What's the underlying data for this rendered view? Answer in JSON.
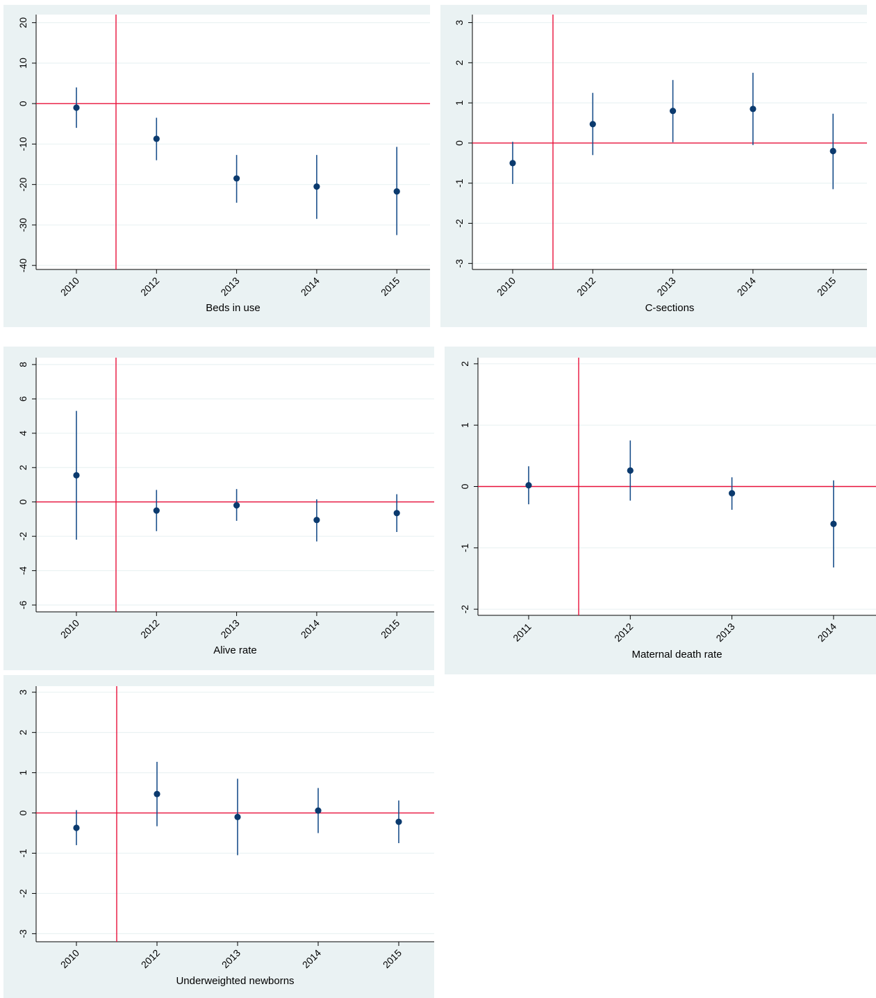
{
  "colors": {
    "background": "#eaf2f3",
    "reference_line": "#e8103a",
    "estimate": "#0b3a6e",
    "interval": "#1a4f8b"
  },
  "chart_data": [
    {
      "type": "scatter",
      "subtype": "point-estimate-with-confidence-interval",
      "xlabel": "Beds in use",
      "categories": [
        "2010",
        "2012",
        "2013",
        "2014",
        "2015"
      ],
      "estimates": [
        -1,
        -8.7,
        -18.5,
        -20.5,
        -21.7
      ],
      "ci_low": [
        -6,
        -14,
        -24.5,
        -28.5,
        -32.5
      ],
      "ci_high": [
        4,
        -3.5,
        -12.7,
        -12.7,
        -10.7
      ],
      "ylim": [
        -41,
        22
      ],
      "yticks": [
        "20",
        "10",
        "0",
        "-10",
        "-20",
        "-30",
        "-40"
      ],
      "ytick_values": [
        20,
        10,
        0,
        -10,
        -20,
        -30,
        -40
      ],
      "reference_y": 0,
      "reference_x_between": [
        "2010",
        "2012"
      ],
      "grid": true
    },
    {
      "type": "scatter",
      "subtype": "point-estimate-with-confidence-interval",
      "xlabel": "C-sections",
      "categories": [
        "2010",
        "2012",
        "2013",
        "2014",
        "2015"
      ],
      "estimates": [
        -0.5,
        0.47,
        0.8,
        0.85,
        -0.2
      ],
      "ci_low": [
        -1.02,
        -0.3,
        0.02,
        -0.05,
        -1.15
      ],
      "ci_high": [
        0.03,
        1.25,
        1.57,
        1.75,
        0.73
      ],
      "ylim": [
        -3.15,
        3.2
      ],
      "yticks": [
        "3",
        "2",
        "1",
        "0",
        "-1",
        "-2",
        "-3"
      ],
      "ytick_values": [
        3,
        2,
        1,
        0,
        -1,
        -2,
        -3
      ],
      "reference_y": 0,
      "reference_x_between": [
        "2010",
        "2012"
      ],
      "grid": true
    },
    {
      "type": "scatter",
      "subtype": "point-estimate-with-confidence-interval",
      "xlabel": "Alive rate",
      "categories": [
        "2010",
        "2012",
        "2013",
        "2014",
        "2015"
      ],
      "estimates": [
        1.55,
        -0.5,
        -0.2,
        -1.05,
        -0.65
      ],
      "ci_low": [
        -2.2,
        -1.7,
        -1.1,
        -2.3,
        -1.75
      ],
      "ci_high": [
        5.3,
        0.7,
        0.75,
        0.15,
        0.45
      ],
      "ylim": [
        -6.4,
        8.4
      ],
      "yticks": [
        "8",
        "6",
        "4",
        "2",
        "0",
        "-2",
        "-4",
        "-6"
      ],
      "ytick_values": [
        8,
        6,
        4,
        2,
        0,
        -2,
        -4,
        -6
      ],
      "reference_y": 0,
      "reference_x_between": [
        "2010",
        "2012"
      ],
      "grid": true
    },
    {
      "type": "scatter",
      "subtype": "point-estimate-with-confidence-interval",
      "xlabel": "Maternal death rate",
      "categories": [
        "2011",
        "2012",
        "2013",
        "2014"
      ],
      "estimates": [
        0.02,
        0.26,
        -0.11,
        -0.61
      ],
      "ci_low": [
        -0.29,
        -0.23,
        -0.38,
        -1.32
      ],
      "ci_high": [
        0.33,
        0.75,
        0.15,
        0.1
      ],
      "ylim": [
        -2.1,
        2.1
      ],
      "yticks": [
        "2",
        "1",
        "0",
        "-1",
        "-2"
      ],
      "ytick_values": [
        2,
        1,
        0,
        -1,
        -2
      ],
      "reference_y": 0,
      "reference_x_between": [
        "2011",
        "2012"
      ],
      "grid": true
    },
    {
      "type": "scatter",
      "subtype": "point-estimate-with-confidence-interval",
      "xlabel": "Underweighted newborns",
      "categories": [
        "2010",
        "2012",
        "2013",
        "2014",
        "2015"
      ],
      "estimates": [
        -0.37,
        0.47,
        -0.1,
        0.06,
        -0.22
      ],
      "ci_low": [
        -0.8,
        -0.33,
        -1.05,
        -0.5,
        -0.75
      ],
      "ci_high": [
        0.07,
        1.27,
        0.85,
        0.62,
        0.31
      ],
      "ylim": [
        -3.2,
        3.15
      ],
      "yticks": [
        "3",
        "2",
        "1",
        "0",
        "-1",
        "-2",
        "-3"
      ],
      "ytick_values": [
        3,
        2,
        1,
        0,
        -1,
        -2,
        -3
      ],
      "reference_y": 0,
      "reference_x_between": [
        "2010",
        "2012"
      ],
      "grid": true
    }
  ]
}
